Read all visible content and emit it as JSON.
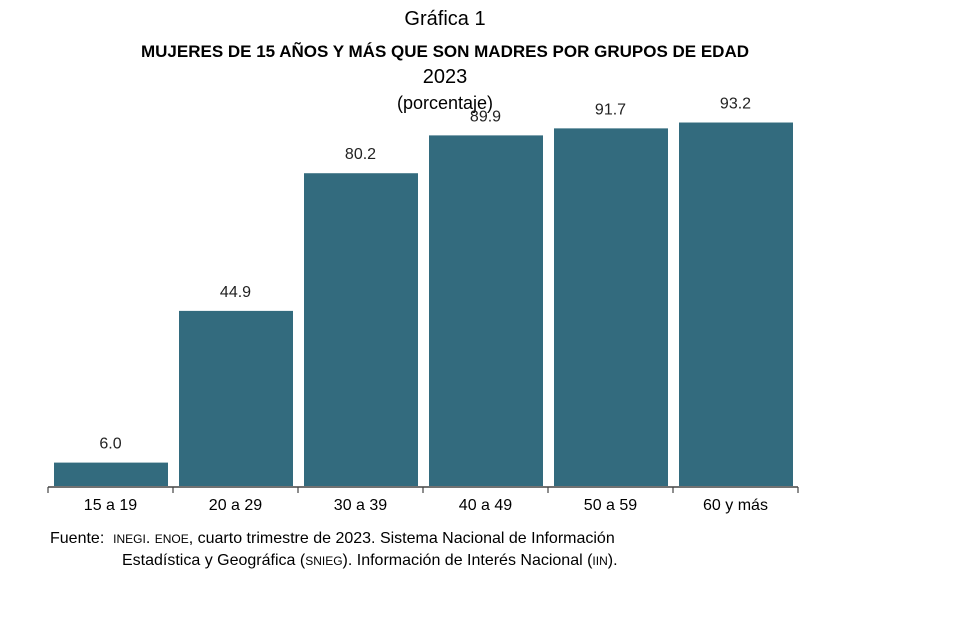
{
  "header": {
    "label": "Gráfica 1",
    "title": "MUJERES DE 15 AÑOS Y MÁS QUE SON MADRES POR GRUPOS DE EDAD",
    "year": "2023",
    "unit": "(porcentaje)"
  },
  "chart_data": {
    "type": "bar",
    "categories": [
      "15 a 19",
      "20 a 29",
      "30 a 39",
      "40 a 49",
      "50 a 59",
      "60 y más"
    ],
    "values": [
      6.0,
      44.9,
      80.2,
      89.9,
      91.7,
      93.2
    ],
    "value_labels": [
      "6.0",
      "44.9",
      "80.2",
      "89.9",
      "91.7",
      "93.2"
    ],
    "title": "MUJERES DE 15 AÑOS Y MÁS QUE SON MADRES POR GRUPOS DE EDAD",
    "xlabel": "",
    "ylabel": "",
    "ylim": [
      0,
      100
    ],
    "grid": false,
    "bar_color": "#336b7e"
  },
  "source": {
    "prefix": "Fuente:",
    "org": "INEGI",
    "sep1": ". ",
    "survey": "ENOE",
    "line1_rest": ", cuarto trimestre de 2023. Sistema Nacional de Información",
    "line2_a": "Estadística y Geográfica (",
    "snieg": "SNIEG",
    "line2_b": "). Información de Interés Nacional (",
    "iin": "IIN",
    "line2_c": ")."
  }
}
